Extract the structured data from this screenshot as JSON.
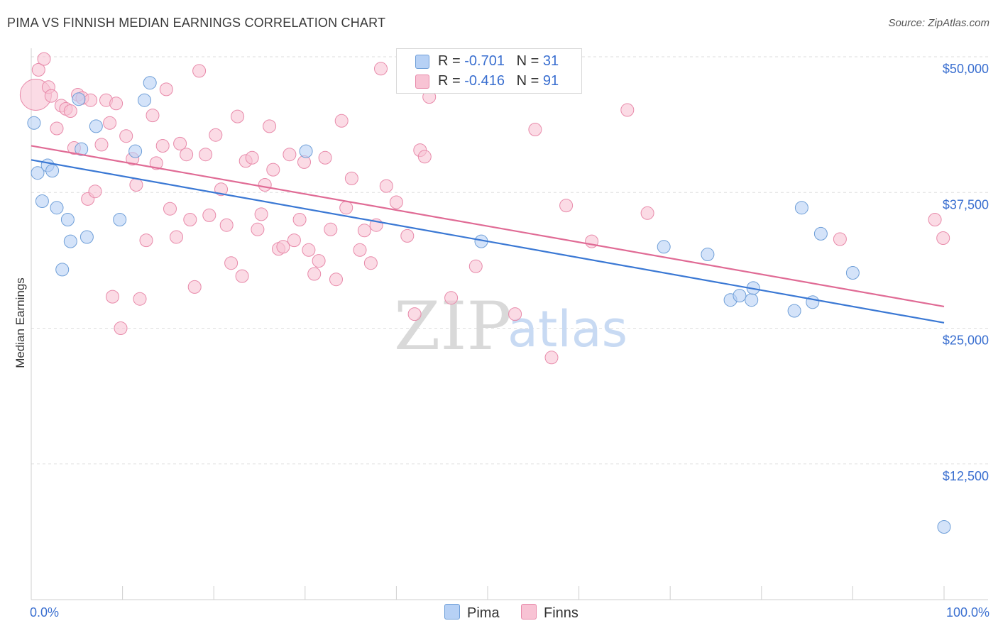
{
  "header": {
    "title": "PIMA VS FINNISH MEDIAN EARNINGS CORRELATION CHART",
    "source": "Source: ZipAtlas.com"
  },
  "legend": {
    "rows": [
      {
        "r_label": "R = ",
        "r_value": "-0.701",
        "n_label": "N = ",
        "n_value": "31"
      },
      {
        "r_label": "R = ",
        "r_value": "-0.416",
        "n_label": "N = ",
        "n_value": "91"
      }
    ]
  },
  "colors": {
    "pima_fill": "#b7d1f5",
    "pima_stroke": "#6f9fd8",
    "pima_line": "#3a78d4",
    "finns_fill": "#f8c3d4",
    "finns_stroke": "#e88aaa",
    "finns_line": "#e06b95",
    "axis_label": "#3a6fd0",
    "grid": "#dddddd"
  },
  "watermark": {
    "zip": "ZIP",
    "atlas": "atlas"
  },
  "chart_data": {
    "type": "scatter",
    "title": "PIMA VS FINNISH MEDIAN EARNINGS CORRELATION CHART",
    "xlabel": "",
    "ylabel": "Median Earnings",
    "xlim": [
      0,
      100
    ],
    "ylim": [
      0,
      52500
    ],
    "x_tick_labels": [
      "0.0%",
      "100.0%"
    ],
    "y_ticks": [
      12500,
      25000,
      37500,
      50000
    ],
    "y_tick_labels": [
      "$12,500",
      "$25,000",
      "$37,500",
      "$50,000"
    ],
    "grid": true,
    "legend_position": "top-center",
    "series": [
      {
        "name": "Pima",
        "r": -0.701,
        "n": 31,
        "trend": [
          [
            0,
            40500
          ],
          [
            100,
            25500
          ]
        ],
        "points": [
          [
            0.3,
            43900
          ],
          [
            0.7,
            39300
          ],
          [
            1.2,
            36700
          ],
          [
            1.8,
            40000
          ],
          [
            2.3,
            39500
          ],
          [
            2.8,
            36100
          ],
          [
            3.4,
            30400
          ],
          [
            4.0,
            35000
          ],
          [
            4.3,
            33000
          ],
          [
            5.2,
            46100
          ],
          [
            5.5,
            41500
          ],
          [
            6.1,
            33400
          ],
          [
            7.1,
            43600
          ],
          [
            9.7,
            35000
          ],
          [
            11.4,
            41300
          ],
          [
            12.4,
            46000
          ],
          [
            13.0,
            47600
          ],
          [
            30.1,
            41300
          ],
          [
            49.3,
            33000
          ],
          [
            69.3,
            32500
          ],
          [
            74.1,
            31800
          ],
          [
            76.6,
            27600
          ],
          [
            77.6,
            28000
          ],
          [
            78.9,
            27600
          ],
          [
            79.1,
            28700
          ],
          [
            83.6,
            26600
          ],
          [
            84.4,
            36100
          ],
          [
            85.6,
            27400
          ],
          [
            86.5,
            33700
          ],
          [
            90.0,
            30100
          ],
          [
            100.0,
            6700
          ]
        ]
      },
      {
        "name": "Finns",
        "r": -0.416,
        "n": 91,
        "trend": [
          [
            0,
            41800
          ],
          [
            100,
            27000
          ]
        ],
        "points": [
          [
            0.5,
            46500
          ],
          [
            0.8,
            48800
          ],
          [
            1.4,
            49800
          ],
          [
            1.9,
            47200
          ],
          [
            2.2,
            46400
          ],
          [
            2.8,
            43400
          ],
          [
            3.3,
            45500
          ],
          [
            3.8,
            45200
          ],
          [
            4.3,
            45000
          ],
          [
            4.7,
            41600
          ],
          [
            5.1,
            46500
          ],
          [
            5.6,
            46200
          ],
          [
            6.2,
            36900
          ],
          [
            6.5,
            46000
          ],
          [
            7.0,
            37600
          ],
          [
            7.7,
            41900
          ],
          [
            8.2,
            46000
          ],
          [
            8.6,
            43900
          ],
          [
            8.9,
            27900
          ],
          [
            9.3,
            45700
          ],
          [
            9.8,
            25000
          ],
          [
            10.4,
            42700
          ],
          [
            11.1,
            40600
          ],
          [
            11.5,
            38200
          ],
          [
            11.9,
            27700
          ],
          [
            12.6,
            33100
          ],
          [
            13.3,
            44600
          ],
          [
            13.7,
            40200
          ],
          [
            14.4,
            41800
          ],
          [
            14.8,
            47000
          ],
          [
            15.2,
            36000
          ],
          [
            15.9,
            33400
          ],
          [
            16.3,
            42000
          ],
          [
            17.0,
            41000
          ],
          [
            17.4,
            35000
          ],
          [
            17.9,
            28800
          ],
          [
            18.4,
            48700
          ],
          [
            19.1,
            41000
          ],
          [
            19.5,
            35400
          ],
          [
            20.2,
            42800
          ],
          [
            20.8,
            37800
          ],
          [
            21.4,
            34500
          ],
          [
            21.9,
            31000
          ],
          [
            22.6,
            44500
          ],
          [
            23.1,
            29800
          ],
          [
            23.5,
            40400
          ],
          [
            24.2,
            40700
          ],
          [
            24.8,
            34100
          ],
          [
            25.2,
            35500
          ],
          [
            25.6,
            38200
          ],
          [
            26.1,
            43600
          ],
          [
            26.5,
            39600
          ],
          [
            27.1,
            32300
          ],
          [
            27.6,
            32500
          ],
          [
            28.3,
            41000
          ],
          [
            28.8,
            33100
          ],
          [
            29.4,
            35000
          ],
          [
            29.9,
            40300
          ],
          [
            30.4,
            32200
          ],
          [
            31.0,
            30000
          ],
          [
            31.5,
            31200
          ],
          [
            32.2,
            40700
          ],
          [
            32.8,
            34100
          ],
          [
            33.4,
            29500
          ],
          [
            34.0,
            44100
          ],
          [
            34.5,
            36100
          ],
          [
            35.1,
            38800
          ],
          [
            36.0,
            32200
          ],
          [
            36.5,
            34000
          ],
          [
            37.2,
            31000
          ],
          [
            37.8,
            34500
          ],
          [
            38.3,
            48900
          ],
          [
            38.9,
            38100
          ],
          [
            40.0,
            36600
          ],
          [
            41.2,
            33500
          ],
          [
            42.0,
            26300
          ],
          [
            42.6,
            41400
          ],
          [
            43.1,
            40800
          ],
          [
            43.6,
            46300
          ],
          [
            46.0,
            27800
          ],
          [
            48.7,
            30700
          ],
          [
            53.0,
            26300
          ],
          [
            55.2,
            43300
          ],
          [
            57.0,
            22300
          ],
          [
            58.6,
            36300
          ],
          [
            61.4,
            33000
          ],
          [
            65.3,
            45100
          ],
          [
            67.5,
            35600
          ],
          [
            88.6,
            33200
          ],
          [
            99.9,
            33300
          ],
          [
            99.0,
            35000
          ]
        ]
      }
    ]
  }
}
